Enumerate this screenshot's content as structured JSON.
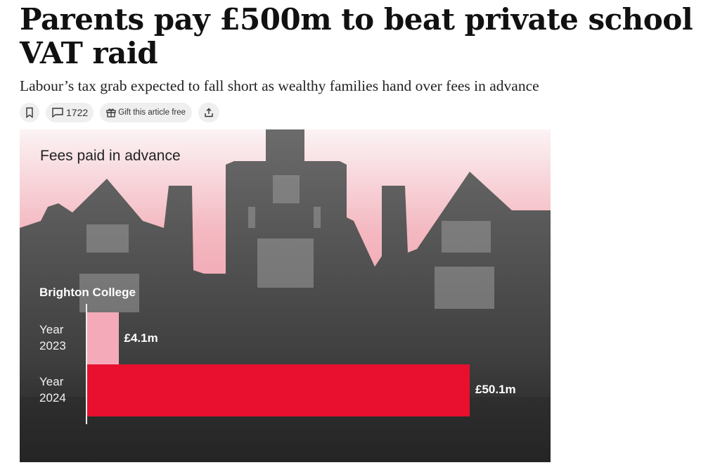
{
  "article": {
    "headline": "Parents pay £500m to beat private school VAT raid",
    "standfirst": "Labour’s tax grab expected to fall short as wealthy families hand over fees in advance",
    "actions": {
      "bookmark_icon": "bookmark-icon",
      "comment_icon": "comment-icon",
      "comment_count": "1722",
      "gift_icon": "gift-icon",
      "gift_label": "Gift this article free",
      "share_icon": "share-icon"
    }
  },
  "chart_data": {
    "type": "bar",
    "orientation": "horizontal",
    "title": "Fees paid in advance",
    "group_label": "Brighton College",
    "categories": [
      [
        "Year",
        "2023"
      ],
      [
        "Year",
        "2024"
      ]
    ],
    "values": [
      4.1,
      50.1
    ],
    "value_labels": [
      "£4.1m",
      "£50.1m"
    ],
    "unit": "£m",
    "colors": [
      "#f5aab9",
      "#e8102e"
    ],
    "grid": false,
    "xlim": [
      0,
      50.1
    ]
  }
}
